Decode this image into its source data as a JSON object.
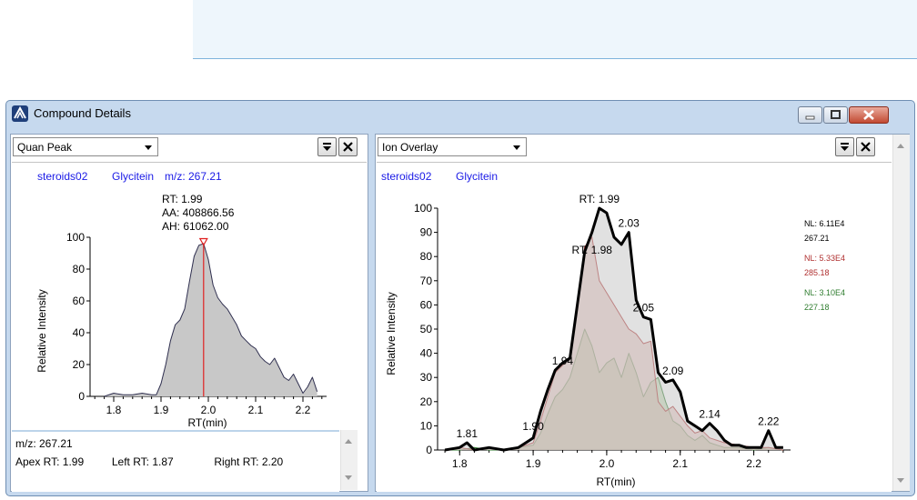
{
  "window": {
    "title": "Compound Details"
  },
  "left_panel": {
    "view_select": "Quan Peak",
    "header": {
      "file": "steroids02",
      "compound": "Glycitein",
      "mz_label": "m/z: 267.21"
    },
    "peak_labels": {
      "rt": "RT: 1.99",
      "aa": "AA: 408866.56",
      "ah": "AH: 61062.00"
    },
    "info": {
      "mz": "m/z: 267.21",
      "apex": "Apex RT: 1.99",
      "left": "Left RT: 1.87",
      "right": "Right RT: 2.20"
    }
  },
  "right_panel": {
    "view_select": "Ion Overlay",
    "header": {
      "file": "steroids02",
      "compound": "Glycitein"
    }
  },
  "colors": {
    "header_blue": "#1a1ae6",
    "black_trace": "#000000",
    "red_trace": "#b03030",
    "green_trace": "#2f7d2f",
    "peak_line": "#e02020"
  },
  "chart_data": [
    {
      "type": "area",
      "xlabel": "RT(min)",
      "ylabel": "Relative Intensity",
      "xlim": [
        1.75,
        2.25
      ],
      "ylim": [
        0,
        100
      ],
      "xticks": [
        "1.8",
        "1.9",
        "2.0",
        "2.1",
        "2.2"
      ],
      "yticks": [
        "0",
        "20",
        "40",
        "60",
        "80",
        "100"
      ],
      "peak_marker_x": 1.99,
      "series": [
        {
          "x": [
            1.78,
            1.8,
            1.82,
            1.84,
            1.86,
            1.88,
            1.89,
            1.9,
            1.91,
            1.92,
            1.93,
            1.94,
            1.95,
            1.96,
            1.97,
            1.98,
            1.99,
            2.0,
            2.01,
            2.02,
            2.03,
            2.04,
            2.05,
            2.06,
            2.07,
            2.08,
            2.09,
            2.1,
            2.11,
            2.12,
            2.13,
            2.14,
            2.15,
            2.16,
            2.17,
            2.18,
            2.19,
            2.2,
            2.21,
            2.22,
            2.23
          ],
          "y": [
            0,
            2,
            1,
            1,
            2,
            1,
            1,
            8,
            20,
            35,
            45,
            48,
            55,
            72,
            88,
            95,
            96,
            86,
            70,
            62,
            58,
            55,
            50,
            45,
            38,
            35,
            32,
            30,
            25,
            22,
            20,
            24,
            18,
            12,
            10,
            14,
            8,
            2,
            6,
            12,
            3
          ]
        }
      ]
    },
    {
      "type": "area",
      "xlabel": "RT(min)",
      "ylabel": "Relative Intensity",
      "xlim": [
        1.77,
        2.25
      ],
      "ylim": [
        0,
        100
      ],
      "xticks": [
        "1.8",
        "1.9",
        "2.0",
        "2.1",
        "2.2"
      ],
      "yticks": [
        "0",
        "10",
        "20",
        "30",
        "40",
        "50",
        "60",
        "70",
        "80",
        "90",
        "100"
      ],
      "annotations": [
        {
          "text": "1.81",
          "x": 1.81,
          "y": 3
        },
        {
          "text": "1.90",
          "x": 1.9,
          "y": 6
        },
        {
          "text": "1.94",
          "x": 1.94,
          "y": 33
        },
        {
          "text": "RT: 1.98",
          "x": 1.98,
          "y": 79
        },
        {
          "text": "RT: 1.99",
          "x": 1.99,
          "y": 100
        },
        {
          "text": "2.03",
          "x": 2.03,
          "y": 90
        },
        {
          "text": "2.05",
          "x": 2.05,
          "y": 55
        },
        {
          "text": "2.09",
          "x": 2.09,
          "y": 29
        },
        {
          "text": "2.14",
          "x": 2.14,
          "y": 11
        },
        {
          "text": "2.22",
          "x": 2.22,
          "y": 8
        }
      ],
      "series": [
        {
          "nl": "NL: 6.11E4",
          "mz": "267.21",
          "x": [
            1.78,
            1.8,
            1.81,
            1.82,
            1.84,
            1.86,
            1.88,
            1.9,
            1.91,
            1.92,
            1.93,
            1.94,
            1.95,
            1.96,
            1.97,
            1.98,
            1.99,
            2.0,
            2.01,
            2.02,
            2.03,
            2.04,
            2.05,
            2.06,
            2.07,
            2.08,
            2.09,
            2.1,
            2.11,
            2.12,
            2.13,
            2.14,
            2.15,
            2.16,
            2.17,
            2.18,
            2.19,
            2.2,
            2.21,
            2.22,
            2.23,
            2.24
          ],
          "y": [
            0,
            1,
            3,
            0,
            1,
            0,
            1,
            5,
            16,
            25,
            33,
            36,
            38,
            60,
            82,
            90,
            100,
            98,
            88,
            85,
            90,
            62,
            55,
            54,
            32,
            28,
            29,
            24,
            12,
            10,
            8,
            11,
            8,
            4,
            2,
            2,
            1,
            1,
            1,
            8,
            1,
            1
          ]
        },
        {
          "nl": "NL: 5.33E4",
          "mz": "285.18",
          "x": [
            1.78,
            1.8,
            1.82,
            1.84,
            1.86,
            1.88,
            1.9,
            1.91,
            1.92,
            1.93,
            1.94,
            1.95,
            1.96,
            1.97,
            1.98,
            1.99,
            2.0,
            2.01,
            2.02,
            2.03,
            2.04,
            2.05,
            2.06,
            2.07,
            2.08,
            2.09,
            2.1,
            2.11,
            2.12,
            2.13,
            2.14,
            2.15,
            2.16,
            2.18,
            2.2,
            2.22,
            2.24
          ],
          "y": [
            0,
            1,
            0,
            1,
            0,
            1,
            3,
            12,
            22,
            32,
            35,
            38,
            58,
            84,
            88,
            70,
            65,
            60,
            55,
            50,
            48,
            44,
            45,
            20,
            16,
            18,
            14,
            10,
            7,
            8,
            5,
            4,
            3,
            2,
            1,
            1,
            0
          ]
        },
        {
          "nl": "NL: 3.10E4",
          "mz": "227.18",
          "x": [
            1.78,
            1.8,
            1.82,
            1.84,
            1.86,
            1.88,
            1.9,
            1.91,
            1.92,
            1.93,
            1.94,
            1.95,
            1.96,
            1.97,
            1.98,
            1.99,
            2.0,
            2.01,
            2.02,
            2.03,
            2.04,
            2.05,
            2.06,
            2.07,
            2.08,
            2.09,
            2.1,
            2.11,
            2.12,
            2.13,
            2.14,
            2.15,
            2.16,
            2.18,
            2.2,
            2.22,
            2.24
          ],
          "y": [
            0,
            0,
            1,
            0,
            0,
            1,
            2,
            7,
            15,
            22,
            25,
            30,
            40,
            50,
            43,
            32,
            36,
            38,
            30,
            40,
            32,
            22,
            28,
            30,
            20,
            12,
            10,
            6,
            4,
            6,
            3,
            2,
            1,
            1,
            0,
            1,
            0
          ]
        }
      ]
    }
  ]
}
